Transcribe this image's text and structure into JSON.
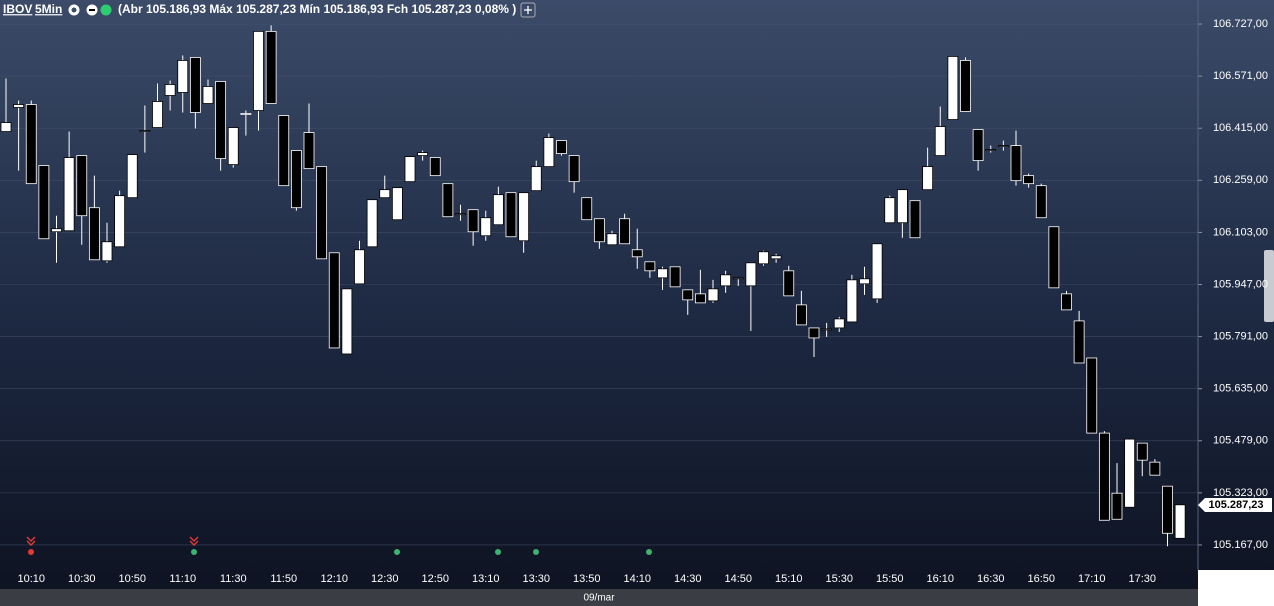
{
  "chart_data": {
    "type": "candlestick",
    "symbol": "IBOV",
    "interval": "5Min",
    "ohlc_text": "(Abr 105.186,93 Máx 105.287,23 Mín 105.186,93 Fch 105.287,23 0,08% )",
    "date_label": "09/mar",
    "last_price_label": "105.287,23",
    "up_color": "#ffffff",
    "down_color": "#000000",
    "grid": true,
    "categories": [
      null,
      null,
      "10:10",
      null,
      null,
      null,
      "10:30",
      null,
      null,
      null,
      "10:50",
      null,
      null,
      null,
      "11:10",
      null,
      null,
      null,
      "11:30",
      null,
      null,
      null,
      "11:50",
      null,
      null,
      null,
      "12:10",
      null,
      null,
      null,
      "12:30",
      null,
      null,
      null,
      "12:50",
      null,
      null,
      null,
      "13:10",
      null,
      null,
      null,
      "13:30",
      null,
      null,
      null,
      "13:50",
      null,
      null,
      null,
      "14:10",
      null,
      null,
      null,
      "14:30",
      null,
      null,
      null,
      "14:50",
      null,
      null,
      null,
      "15:10",
      null,
      null,
      null,
      "15:30",
      null,
      null,
      null,
      "15:50",
      null,
      null,
      null,
      "16:10",
      null,
      null,
      null,
      "16:30",
      null,
      null,
      null,
      "16:50",
      null,
      null,
      null,
      "17:10",
      null,
      null,
      null,
      "17:30",
      null,
      null,
      null
    ],
    "open": [
      106405,
      106477,
      106486,
      106303,
      106105,
      106108,
      106333,
      106177,
      106018,
      106060,
      106207,
      106405,
      106417,
      106513,
      106522,
      106627,
      106489,
      106555,
      106306,
      106459,
      106468,
      106705,
      106453,
      106348,
      106402,
      106300,
      106042,
      105739,
      105949,
      106060,
      106207,
      106141,
      106255,
      106333,
      106327,
      106249,
      106159,
      106171,
      106093,
      106126,
      106222,
      106078,
      106228,
      106300,
      106378,
      106333,
      106207,
      106144,
      106066,
      106144,
      106051,
      106015,
      105967,
      106000,
      105931,
      105919,
      105898,
      105943,
      105967,
      105943,
      106009,
      106024,
      105988,
      105886,
      105817,
      105814,
      105817,
      105835,
      105949,
      105904,
      106132,
      106132,
      106198,
      106231,
      106333,
      106441,
      106618,
      106411,
      106351,
      106363,
      106363,
      106273,
      106243,
      106120,
      105919,
      105838,
      105727,
      105502,
      105322,
      105280,
      105472,
      105415,
      105343,
      105186.93
    ],
    "high": [
      106564,
      106498,
      106498,
      106303,
      106153,
      106405,
      106333,
      106273,
      106132,
      106228,
      106336,
      106483,
      106549,
      106558,
      106633,
      106627,
      106561,
      106555,
      106417,
      106468,
      106705,
      106723,
      106453,
      106348,
      106489,
      106300,
      106042,
      105934,
      106078,
      106201,
      106273,
      106237,
      106330,
      106348,
      106327,
      106249,
      106186,
      106171,
      106168,
      106240,
      106222,
      106222,
      106318,
      106399,
      106378,
      106333,
      106207,
      106144,
      106108,
      106159,
      106114,
      106015,
      106000,
      106000,
      105931,
      105991,
      105961,
      105988,
      105967,
      106012,
      106048,
      106039,
      106003,
      105928,
      105817,
      105832,
      105850,
      105976,
      106000,
      106069,
      106213,
      106231,
      106198,
      106357,
      106480,
      106630,
      106627,
      106411,
      106363,
      106378,
      106408,
      106279,
      106249,
      106120,
      105928,
      105868,
      105727,
      105508,
      105412,
      105484,
      105472,
      105424,
      105343,
      105287.23
    ],
    "low": [
      106405,
      106288,
      106249,
      106084,
      106012,
      106108,
      106066,
      106021,
      106012,
      106060,
      106207,
      106342,
      106417,
      106468,
      106462,
      106414,
      106489,
      106288,
      106297,
      106393,
      106408,
      106489,
      106243,
      106168,
      106294,
      106024,
      105757,
      105739,
      105949,
      106060,
      106207,
      106141,
      106255,
      106318,
      106273,
      106150,
      106138,
      106063,
      106078,
      106126,
      106090,
      106042,
      106228,
      106300,
      106333,
      106222,
      106141,
      106054,
      106066,
      106069,
      105994,
      105967,
      105931,
      105940,
      105856,
      105892,
      105892,
      105922,
      105943,
      105808,
      106003,
      106012,
      105913,
      105826,
      105730,
      105790,
      105805,
      105835,
      105916,
      105892,
      106132,
      106087,
      106087,
      106231,
      106333,
      106441,
      106465,
      106288,
      106342,
      106348,
      106243,
      106237,
      106147,
      105937,
      105871,
      105712,
      105502,
      105241,
      105244,
      105280,
      105373,
      105376,
      105163,
      105186.93
    ],
    "close": [
      106432,
      106486,
      106249,
      106084,
      106114,
      106327,
      106153,
      106021,
      106075,
      106213,
      106336,
      106408,
      106495,
      106546,
      106618,
      106462,
      106540,
      106324,
      106417,
      106456,
      106705,
      106489,
      106243,
      106177,
      106294,
      106024,
      105757,
      105934,
      106051,
      106201,
      106231,
      106237,
      106330,
      106342,
      106273,
      106150,
      106159,
      106105,
      106147,
      106216,
      106090,
      106222,
      106300,
      106387,
      106339,
      106255,
      106141,
      106075,
      106099,
      106069,
      106030,
      105988,
      105994,
      105940,
      105901,
      105892,
      105934,
      105976,
      105967,
      106012,
      106045,
      106033,
      105913,
      105826,
      105787,
      105814,
      105844,
      105961,
      105964,
      106069,
      106207,
      106231,
      106087,
      106300,
      106420,
      106630,
      106465,
      106318,
      106351,
      106363,
      106258,
      106249,
      106147,
      105937,
      105871,
      105712,
      105502,
      105241,
      105244,
      105484,
      105421,
      105376,
      105202,
      105287.23
    ],
    "ylim": [
      105104,
      106799
    ],
    "yticks": [
      {
        "value": 106727,
        "label": "106.727,00"
      },
      {
        "value": 106571,
        "label": "106.571,00"
      },
      {
        "value": 106415,
        "label": "106.415,00"
      },
      {
        "value": 106259,
        "label": "106.259,00"
      },
      {
        "value": 106103,
        "label": "106.103,00"
      },
      {
        "value": 105947,
        "label": "105.947,00"
      },
      {
        "value": 105791,
        "label": "105.791,00"
      },
      {
        "value": 105635,
        "label": "105.635,00"
      },
      {
        "value": 105479,
        "label": "105.479,00"
      },
      {
        "value": 105323,
        "label": "105.323,00"
      },
      {
        "value": 105167,
        "label": "105.167,00"
      }
    ]
  }
}
